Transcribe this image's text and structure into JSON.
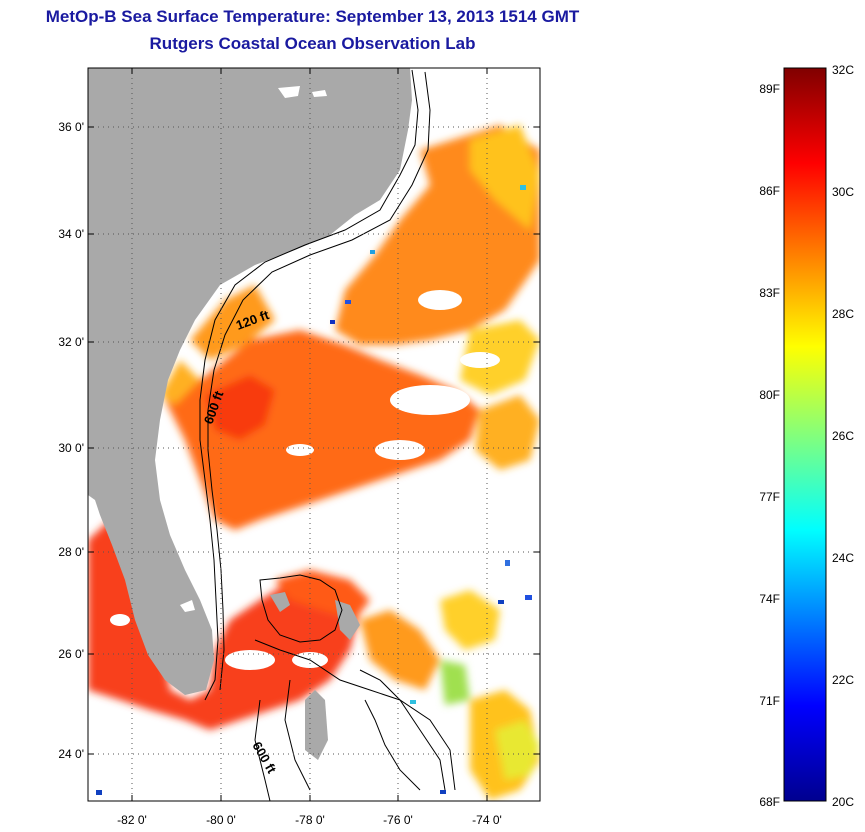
{
  "header": {
    "title": "MetOp-B Sea Surface Temperature:  September 13, 2013 1514 GMT",
    "subtitle": "Rutgers Coastal Ocean Observation Lab"
  },
  "map": {
    "lat_ticks": [
      "36 0'",
      "34 0'",
      "32 0'",
      "30 0'",
      "28 0'",
      "26 0'",
      "24 0'"
    ],
    "lon_ticks": [
      "-82 0'",
      "-80 0'",
      "-78 0'",
      "-76 0'",
      "-74 0'"
    ],
    "contour_labels": [
      "120 ft",
      "600 ft",
      "600 ft"
    ],
    "land_color": "#a9a9a9",
    "cloud_color": "#ffffff"
  },
  "colorbar": {
    "fahrenheit_labels": [
      "89F",
      "86F",
      "83F",
      "80F",
      "77F",
      "74F",
      "71F",
      "68F"
    ],
    "celsius_labels": [
      "32C",
      "30C",
      "28C",
      "26C",
      "24C",
      "22C",
      "20C"
    ],
    "colors": [
      "#00008f",
      "#0000ff",
      "#00ffff",
      "#ffff00",
      "#ff0000",
      "#800000"
    ]
  }
}
